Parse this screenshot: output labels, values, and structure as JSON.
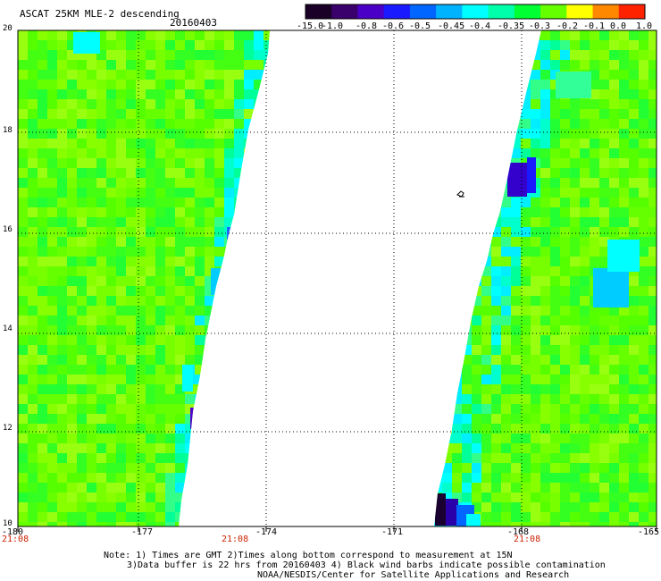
{
  "header": {
    "title": "ASCAT 25KM MLE-2 descending",
    "date": "20160403"
  },
  "colorbar": {
    "labels": [
      "-15.0",
      "-1.0",
      "-0.8",
      "-0.6",
      "-0.5",
      "-0.45",
      "-0.4",
      "-0.35",
      "-0.3",
      "-0.2",
      "-0.1",
      "0.0",
      "1.0"
    ],
    "colors": [
      "#1a0026",
      "#3a006b",
      "#4b00c8",
      "#1a1aff",
      "#0066ff",
      "#00b3ff",
      "#00ffff",
      "#00ffaa",
      "#00ff33",
      "#66ff00",
      "#ffff00",
      "#ff8800",
      "#ff2200"
    ]
  },
  "map": {
    "lon_labels": [
      "-180",
      "-177",
      "-174",
      "-171",
      "-168",
      "-165"
    ],
    "lat_labels": [
      "20",
      "18",
      "16",
      "14",
      "12",
      "10"
    ],
    "time_labels": [
      "21:08",
      "21:08",
      "21:08"
    ],
    "lon_range": [
      -180,
      -165
    ],
    "lat_range": [
      10,
      20
    ],
    "grid": true
  },
  "notes": {
    "line1": "Note: 1) Times are GMT 2)Times along bottom correspond to measurement at 15N",
    "line2": "3)Data buffer is 22 hrs from 20160403 4) Black wind barbs indicate possible contamination",
    "line3": "NOAA/NESDIS/Center for Satellite Applications and Research"
  }
}
